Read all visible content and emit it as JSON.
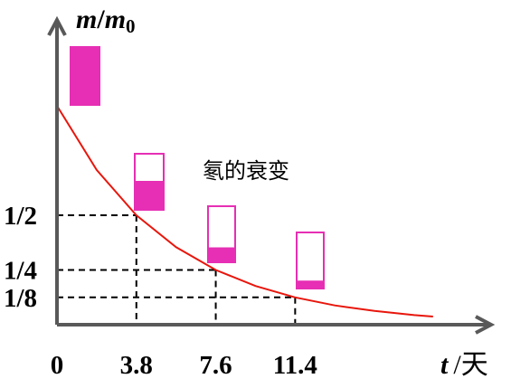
{
  "chart_data": {
    "type": "line",
    "title": "",
    "annotation": "氡的衰变",
    "x_axis": {
      "var": "t",
      "unit": "天",
      "ticks": [
        {
          "value": 0,
          "label": "0"
        },
        {
          "value": 3.8,
          "label": "3.8"
        },
        {
          "value": 7.6,
          "label": "7.6"
        },
        {
          "value": 11.4,
          "label": "11.4"
        }
      ]
    },
    "y_axis": {
      "var": "m",
      "sep": "/",
      "denom": "m",
      "denom_sub": "0",
      "ticks": [
        {
          "value": 0.5,
          "label": "1/2"
        },
        {
          "value": 0.25,
          "label": "1/4"
        },
        {
          "value": 0.125,
          "label": "1/8"
        }
      ]
    },
    "xlim": [
      0,
      18
    ],
    "ylim": [
      0,
      1
    ],
    "series": [
      {
        "color": "#e8160c",
        "x": [
          0,
          1.9,
          3.8,
          5.7,
          7.6,
          9.5,
          11.4,
          13.3,
          15.2,
          17.1,
          18
        ],
        "y": [
          1,
          0.707,
          0.5,
          0.354,
          0.25,
          0.177,
          0.125,
          0.088,
          0.063,
          0.044,
          0.037
        ]
      }
    ],
    "guides": [
      {
        "x": 3.8,
        "y": 0.5
      },
      {
        "x": 7.6,
        "y": 0.25
      },
      {
        "x": 11.4,
        "y": 0.125
      }
    ],
    "samples": [
      {
        "remaining": 1
      },
      {
        "remaining": 0.5
      },
      {
        "remaining": 0.25
      },
      {
        "remaining": 0.125
      }
    ],
    "colors": {
      "curve": "#e8160c",
      "sample": "#e62fb4",
      "axis": "#595959",
      "guide": "#000000"
    },
    "grid": false
  }
}
